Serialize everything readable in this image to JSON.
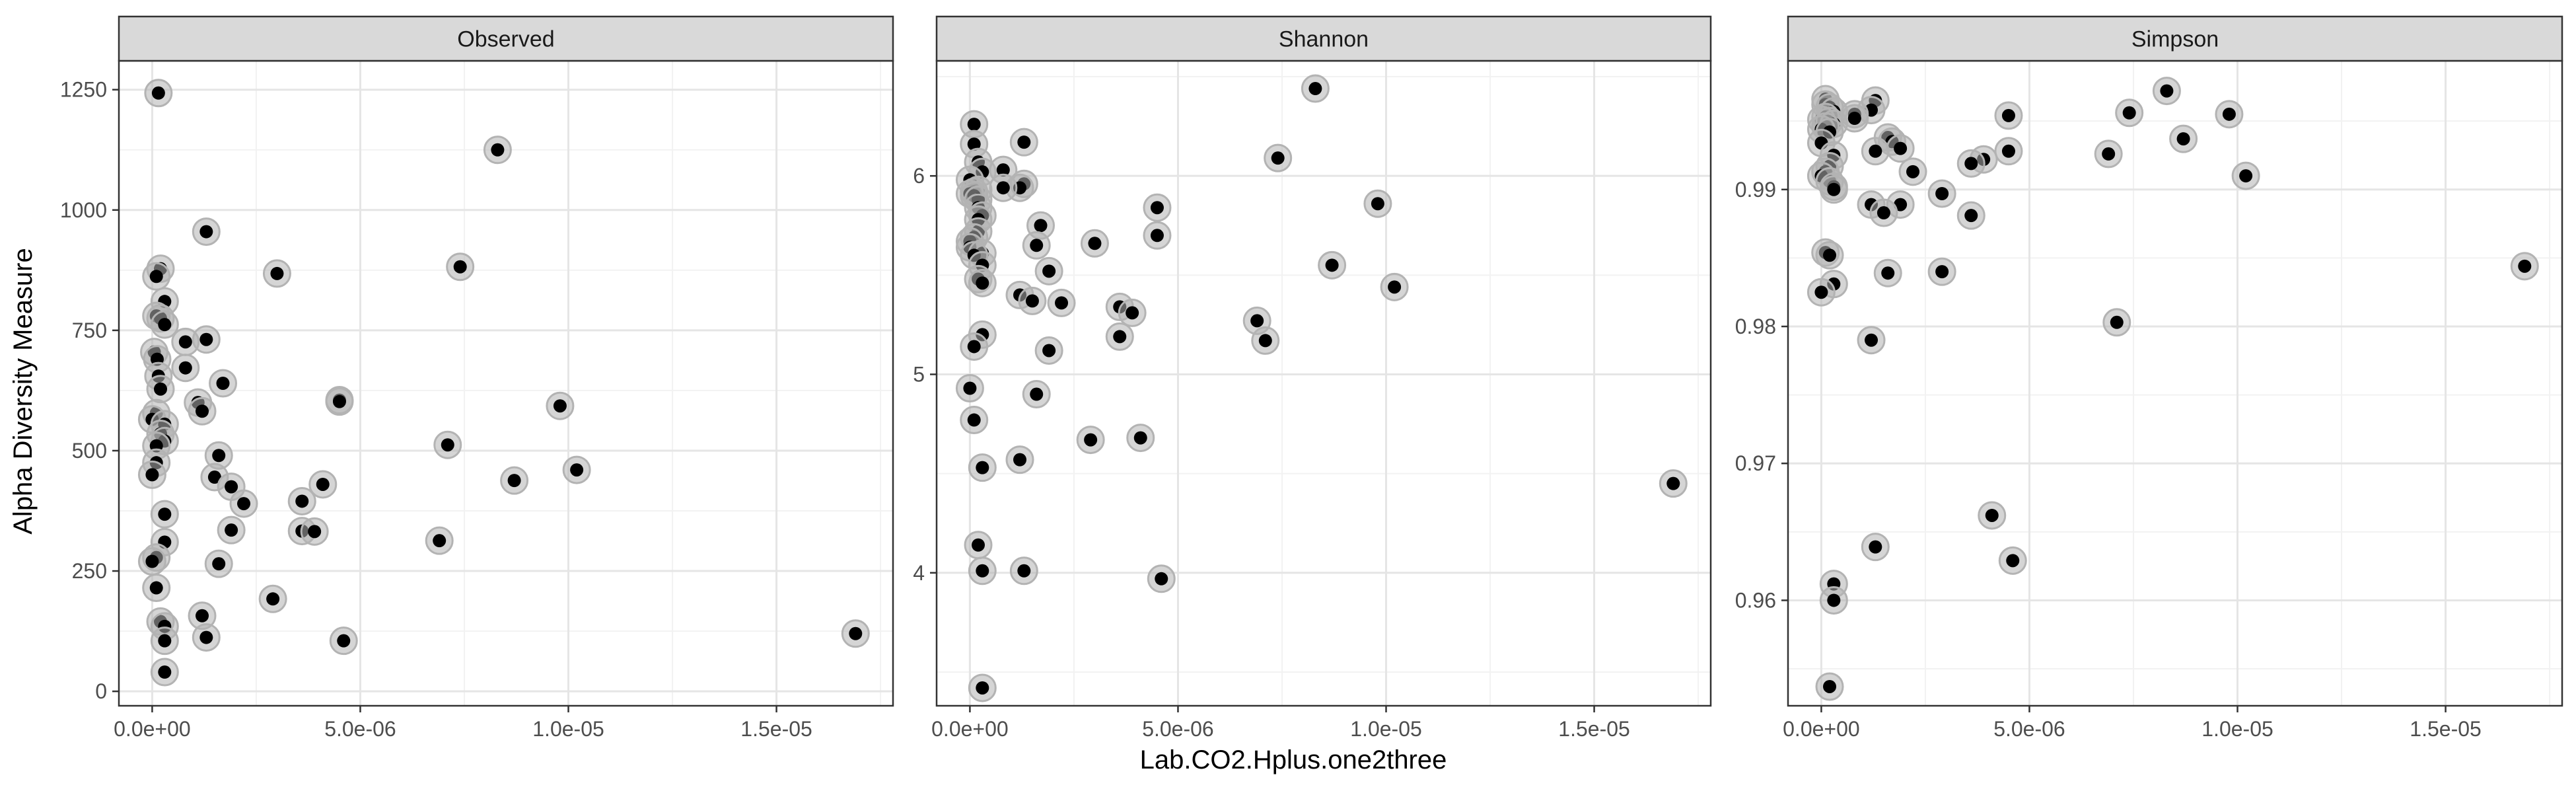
{
  "figure": {
    "ylabel": "Alpha Diversity Measure",
    "xlabel": "Lab.CO2.Hplus.one2three"
  },
  "colors": {
    "background": "#ffffff",
    "strip_fill": "#d9d9d9",
    "strip_border": "#333333",
    "panel_border": "#333333",
    "grid_major": "#e5e5e5",
    "grid_minor": "#f2f2f2",
    "point": "#000000",
    "halo": "#b3b3b3",
    "tick_text": "#4d4d4d"
  },
  "chart_data": [
    {
      "type": "scatter",
      "title": "Observed",
      "grid": true,
      "xlim": [
        -8e-07,
        1.78e-05
      ],
      "ylim": [
        -30,
        1310
      ],
      "xticks": [
        0,
        5e-06,
        1e-05,
        1.5e-05
      ],
      "xtick_labels": [
        "0.0e+00",
        "5.0e-06",
        "1.0e-05",
        "1.5e-05"
      ],
      "yticks": [
        0,
        250,
        500,
        750,
        1000,
        1250
      ],
      "ytick_labels": [
        "0",
        "250",
        "500",
        "750",
        "1000",
        "1250"
      ],
      "points": [
        [
          1.5e-07,
          1243
        ],
        [
          8.3e-06,
          1125
        ],
        [
          1.3e-06,
          955
        ],
        [
          3e-06,
          868
        ],
        [
          7.4e-06,
          882
        ],
        [
          2e-07,
          878
        ],
        [
          1e-07,
          862
        ],
        [
          3e-07,
          810
        ],
        [
          1e-07,
          780
        ],
        [
          2e-07,
          775
        ],
        [
          3e-07,
          762
        ],
        [
          8e-07,
          726
        ],
        [
          1.3e-06,
          731
        ],
        [
          5e-08,
          705
        ],
        [
          1.2e-07,
          690
        ],
        [
          8e-07,
          672
        ],
        [
          1.5e-07,
          655
        ],
        [
          1.7e-06,
          640
        ],
        [
          2e-07,
          628
        ],
        [
          4.5e-06,
          605
        ],
        [
          4.5e-06,
          602
        ],
        [
          1.1e-06,
          600
        ],
        [
          9.8e-06,
          593
        ],
        [
          1.2e-06,
          582
        ],
        [
          1e-07,
          578
        ],
        [
          0,
          565
        ],
        [
          3e-07,
          555
        ],
        [
          2e-07,
          535
        ],
        [
          3e-07,
          520
        ],
        [
          1e-07,
          510
        ],
        [
          7.1e-06,
          512
        ],
        [
          1.6e-06,
          490
        ],
        [
          1e-07,
          475
        ],
        [
          1.02e-05,
          460
        ],
        [
          0,
          450
        ],
        [
          1.5e-06,
          445
        ],
        [
          8.7e-06,
          438
        ],
        [
          4.1e-06,
          430
        ],
        [
          1.9e-06,
          425
        ],
        [
          3.6e-06,
          395
        ],
        [
          2.2e-06,
          390
        ],
        [
          3e-07,
          368
        ],
        [
          3.6e-06,
          333
        ],
        [
          3.9e-06,
          332
        ],
        [
          1.9e-06,
          335
        ],
        [
          6.9e-06,
          313
        ],
        [
          3e-07,
          310
        ],
        [
          1e-07,
          278
        ],
        [
          0,
          270
        ],
        [
          1.6e-06,
          265
        ],
        [
          1e-07,
          215
        ],
        [
          2.9e-06,
          192
        ],
        [
          1.2e-06,
          157
        ],
        [
          2e-07,
          145
        ],
        [
          3e-07,
          135
        ],
        [
          1.3e-06,
          112
        ],
        [
          3e-07,
          105
        ],
        [
          4.6e-06,
          105
        ],
        [
          1.69e-05,
          120
        ],
        [
          3e-07,
          40
        ]
      ]
    },
    {
      "type": "scatter",
      "title": "Shannon",
      "grid": true,
      "xlim": [
        -8e-07,
        1.78e-05
      ],
      "ylim": [
        3.33,
        6.58
      ],
      "xticks": [
        0,
        5e-06,
        1e-05,
        1.5e-05
      ],
      "xtick_labels": [
        "0.0e+00",
        "5.0e-06",
        "1.0e-05",
        "1.5e-05"
      ],
      "yticks": [
        4,
        5,
        6
      ],
      "ytick_labels": [
        "4",
        "5",
        "6"
      ],
      "points": [
        [
          8.3e-06,
          6.44
        ],
        [
          1e-07,
          6.26
        ],
        [
          1.3e-06,
          6.17
        ],
        [
          1e-07,
          6.16
        ],
        [
          7.4e-06,
          6.09
        ],
        [
          2e-07,
          6.07
        ],
        [
          8e-07,
          6.03
        ],
        [
          3e-07,
          6.02
        ],
        [
          0,
          5.98
        ],
        [
          1.3e-06,
          5.96
        ],
        [
          1.2e-06,
          5.94
        ],
        [
          8e-07,
          5.94
        ],
        [
          2e-07,
          5.93
        ],
        [
          1e-07,
          5.92
        ],
        [
          0,
          5.91
        ],
        [
          1e-07,
          5.9
        ],
        [
          2e-07,
          5.88
        ],
        [
          9.8e-06,
          5.86
        ],
        [
          4.5e-06,
          5.84
        ],
        [
          2e-07,
          5.84
        ],
        [
          3e-07,
          5.8
        ],
        [
          2e-07,
          5.78
        ],
        [
          1.7e-06,
          5.75
        ],
        [
          2e-07,
          5.72
        ],
        [
          4.5e-06,
          5.7
        ],
        [
          1e-07,
          5.69
        ],
        [
          0,
          5.67
        ],
        [
          3e-06,
          5.66
        ],
        [
          1.6e-06,
          5.65
        ],
        [
          0,
          5.64
        ],
        [
          3e-07,
          5.61
        ],
        [
          1e-07,
          5.6
        ],
        [
          8.7e-06,
          5.55
        ],
        [
          3e-07,
          5.55
        ],
        [
          1.9e-06,
          5.52
        ],
        [
          2e-07,
          5.48
        ],
        [
          3e-07,
          5.46
        ],
        [
          1.02e-05,
          5.44
        ],
        [
          1.2e-06,
          5.4
        ],
        [
          1.5e-06,
          5.37
        ],
        [
          2.2e-06,
          5.36
        ],
        [
          3.6e-06,
          5.34
        ],
        [
          3.9e-06,
          5.31
        ],
        [
          6.9e-06,
          5.27
        ],
        [
          3e-07,
          5.2
        ],
        [
          3.6e-06,
          5.19
        ],
        [
          7.1e-06,
          5.17
        ],
        [
          1e-07,
          5.14
        ],
        [
          1.9e-06,
          5.12
        ],
        [
          0,
          4.93
        ],
        [
          1.6e-06,
          4.9
        ],
        [
          1e-07,
          4.77
        ],
        [
          4.1e-06,
          4.68
        ],
        [
          2.9e-06,
          4.67
        ],
        [
          1.2e-06,
          4.57
        ],
        [
          3e-07,
          4.53
        ],
        [
          1.69e-05,
          4.45
        ],
        [
          2e-07,
          4.14
        ],
        [
          3e-07,
          4.01
        ],
        [
          1.3e-06,
          4.01
        ],
        [
          4.6e-06,
          3.97
        ],
        [
          3e-07,
          3.42
        ]
      ]
    },
    {
      "type": "scatter",
      "title": "Simpson",
      "grid": true,
      "xlim": [
        -8e-07,
        1.78e-05
      ],
      "ylim": [
        0.9523,
        0.9994
      ],
      "xticks": [
        0,
        5e-06,
        1e-05,
        1.5e-05
      ],
      "xtick_labels": [
        "0.0e+00",
        "5.0e-06",
        "1.0e-05",
        "1.5e-05"
      ],
      "yticks": [
        0.96,
        0.97,
        0.98,
        0.99
      ],
      "ytick_labels": [
        "0.96",
        "0.97",
        "0.98",
        "0.99"
      ],
      "points": [
        [
          8.3e-06,
          0.9972
        ],
        [
          1e-07,
          0.9966
        ],
        [
          1.3e-06,
          0.9965
        ],
        [
          1e-07,
          0.9962
        ],
        [
          2e-07,
          0.996
        ],
        [
          1.2e-06,
          0.9958
        ],
        [
          3e-07,
          0.9957
        ],
        [
          7.4e-06,
          0.9956
        ],
        [
          8e-07,
          0.9955
        ],
        [
          9.8e-06,
          0.9955
        ],
        [
          4.5e-06,
          0.9954
        ],
        [
          1e-07,
          0.9953
        ],
        [
          8e-07,
          0.9952
        ],
        [
          0,
          0.9951
        ],
        [
          2e-07,
          0.995
        ],
        [
          3e-07,
          0.9948
        ],
        [
          1e-07,
          0.9946
        ],
        [
          0,
          0.9944
        ],
        [
          2e-07,
          0.9942
        ],
        [
          1.6e-06,
          0.9938
        ],
        [
          8.7e-06,
          0.9937
        ],
        [
          1.7e-06,
          0.9935
        ],
        [
          0,
          0.9934
        ],
        [
          1.9e-06,
          0.993
        ],
        [
          1.3e-06,
          0.9928
        ],
        [
          4.5e-06,
          0.9928
        ],
        [
          6.9e-06,
          0.9926
        ],
        [
          3e-07,
          0.9925
        ],
        [
          3.9e-06,
          0.9922
        ],
        [
          3.6e-06,
          0.9919
        ],
        [
          2e-07,
          0.9917
        ],
        [
          2.2e-06,
          0.9913
        ],
        [
          1e-07,
          0.9913
        ],
        [
          1.02e-05,
          0.991
        ],
        [
          0,
          0.991
        ],
        [
          2e-07,
          0.9906
        ],
        [
          3e-07,
          0.9902
        ],
        [
          3e-07,
          0.99
        ],
        [
          2.9e-06,
          0.9897
        ],
        [
          1.9e-06,
          0.9889
        ],
        [
          1.2e-06,
          0.9889
        ],
        [
          1.5e-06,
          0.9883
        ],
        [
          3.6e-06,
          0.9881
        ],
        [
          1e-07,
          0.9854
        ],
        [
          2e-07,
          0.9852
        ],
        [
          1.69e-05,
          0.9844
        ],
        [
          2.9e-06,
          0.984
        ],
        [
          1.6e-06,
          0.9839
        ],
        [
          3e-07,
          0.9831
        ],
        [
          0,
          0.9825
        ],
        [
          7.1e-06,
          0.9803
        ],
        [
          1.2e-06,
          0.979
        ],
        [
          4.1e-06,
          0.9662
        ],
        [
          1.3e-06,
          0.9639
        ],
        [
          4.6e-06,
          0.9629
        ],
        [
          3e-07,
          0.9612
        ],
        [
          3e-07,
          0.96
        ],
        [
          2e-07,
          0.9537
        ]
      ]
    }
  ]
}
